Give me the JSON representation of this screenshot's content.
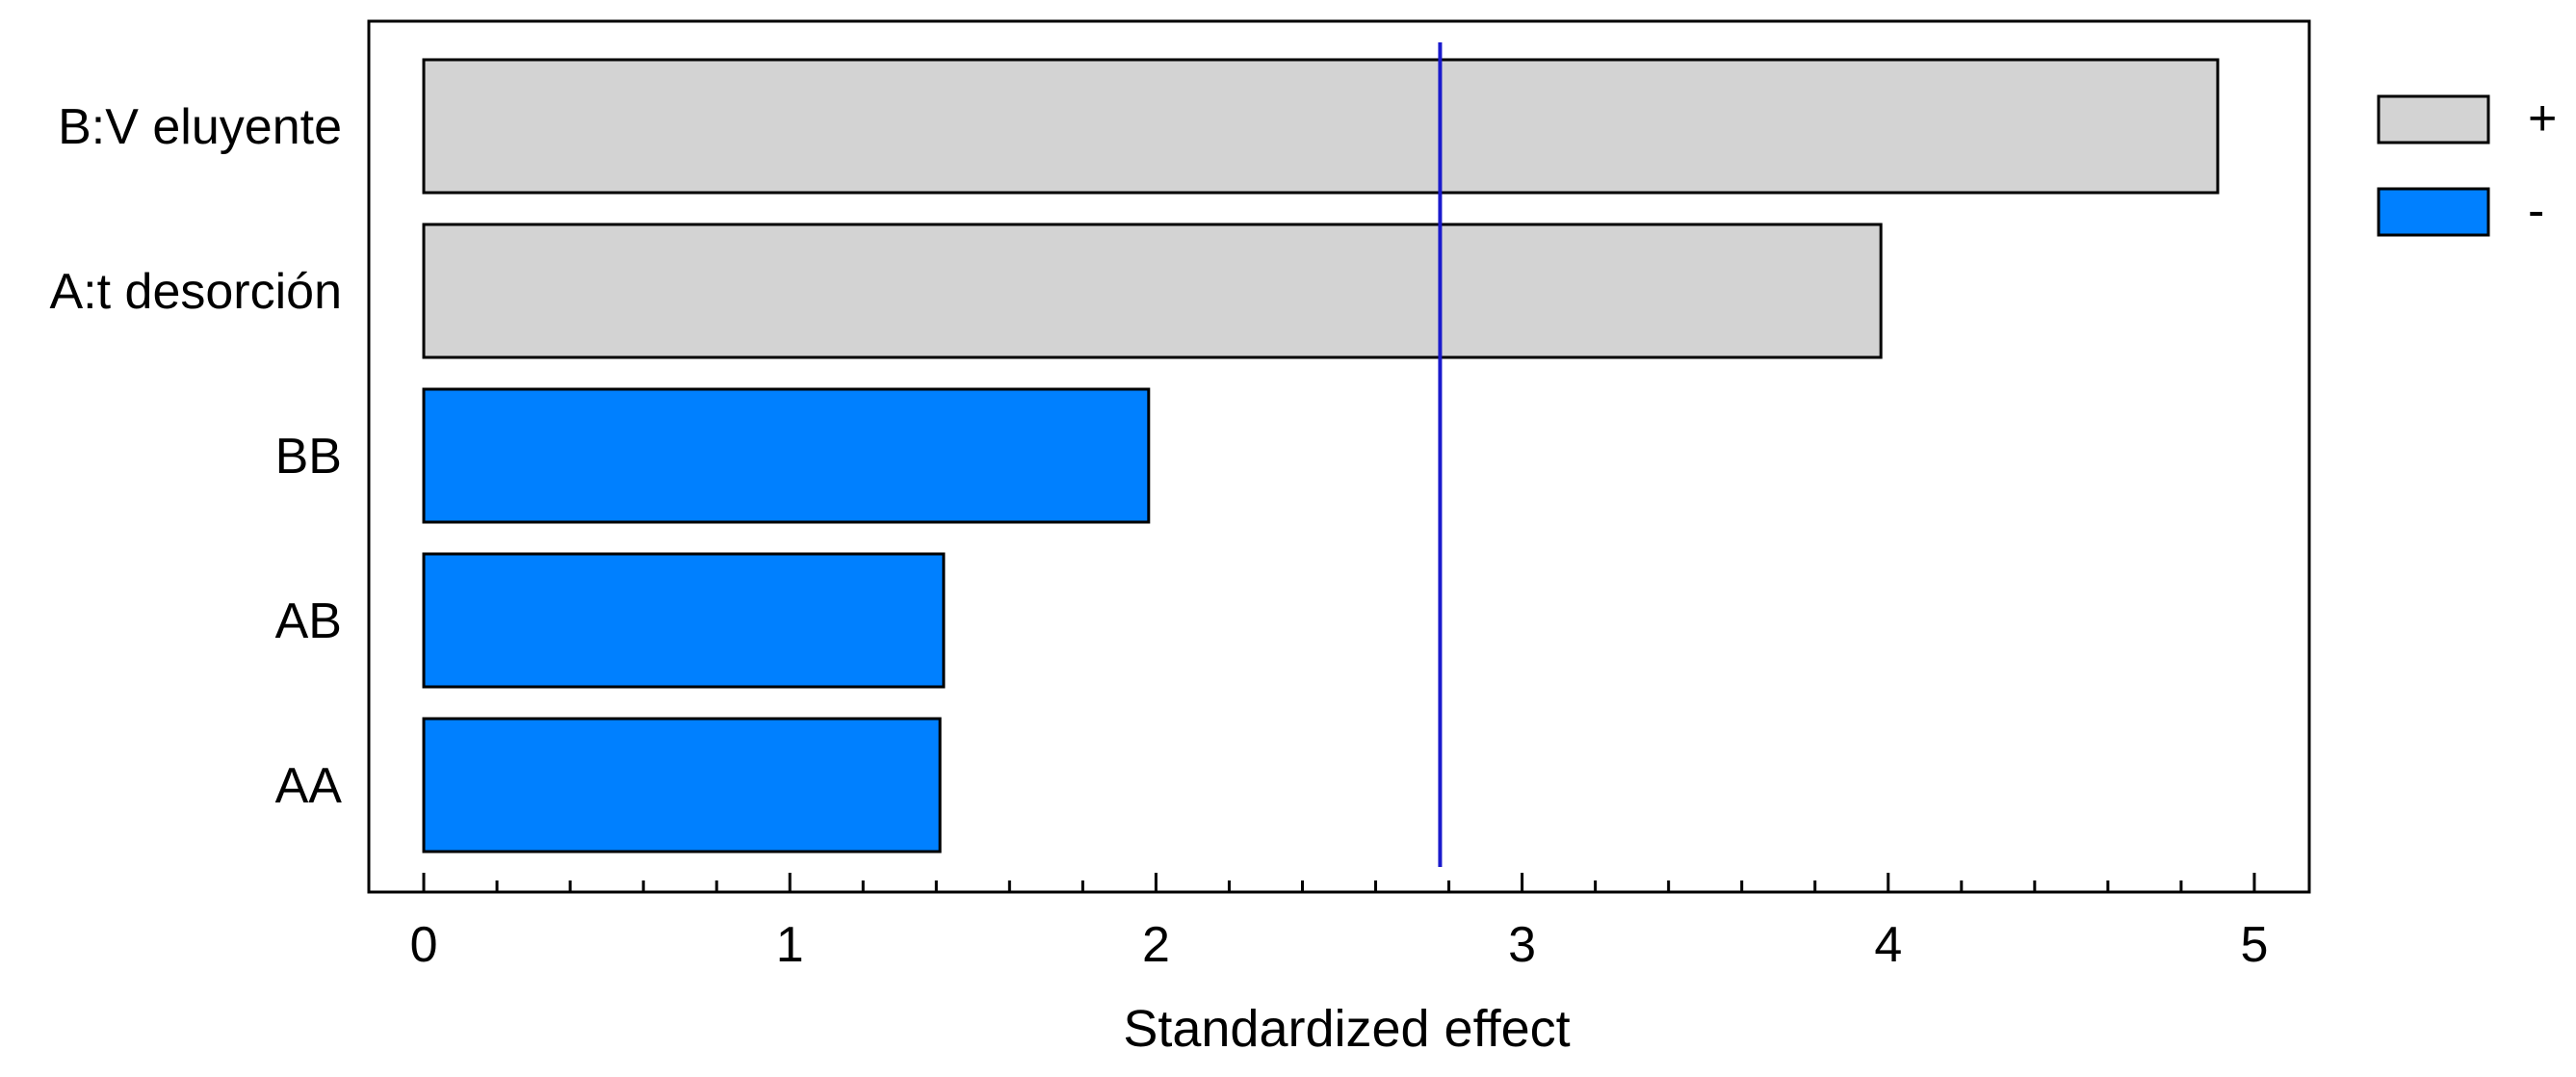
{
  "chart_data": {
    "type": "bar",
    "orientation": "horizontal",
    "categories": [
      "B:V eluyente",
      "A:t desorción",
      "BB",
      "AB",
      "AA"
    ],
    "values": [
      4.9,
      3.98,
      1.98,
      1.42,
      1.41
    ],
    "signs": [
      "+",
      "+",
      "-",
      "-",
      "-"
    ],
    "xlabel": "Standardized effect",
    "ylabel": "",
    "title": "",
    "xlim": [
      -0.15,
      5.15
    ],
    "xticks": [
      0,
      1,
      2,
      3,
      4,
      5
    ],
    "reference_line": 2.776,
    "legend": [
      {
        "label": "+",
        "color": "#d3d3d3"
      },
      {
        "label": "-",
        "color": "#0080ff"
      }
    ],
    "legend_position": "top-right",
    "grid": false
  },
  "colors": {
    "positive": "#d3d3d3",
    "negative": "#0080ff",
    "reference_line": "#1a1acc",
    "axis": "#000000"
  }
}
